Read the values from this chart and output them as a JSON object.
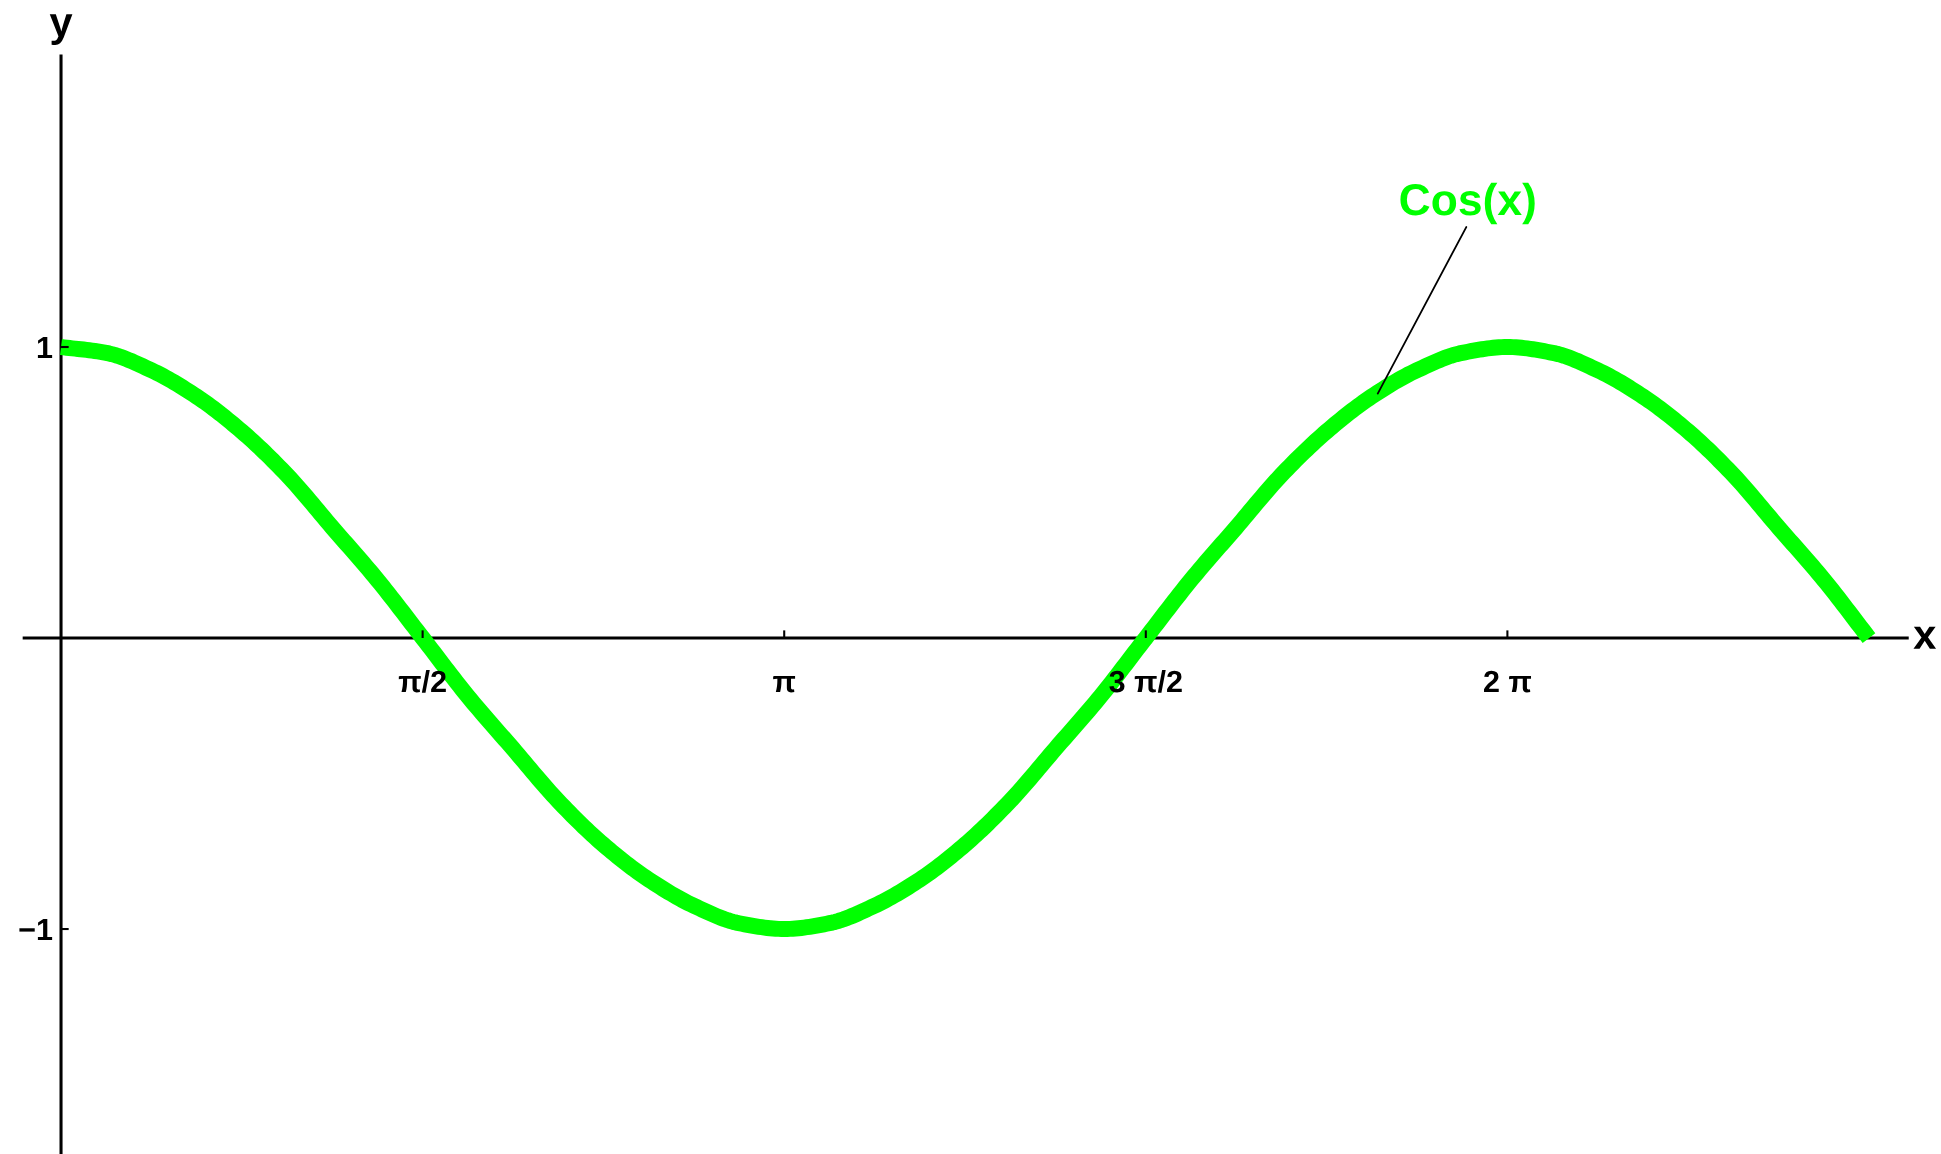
{
  "chart_data": {
    "type": "line",
    "xlabel": "x",
    "ylabel": "y",
    "x": [
      0,
      0.196,
      0.393,
      0.589,
      0.785,
      0.982,
      1.178,
      1.374,
      1.571,
      1.767,
      1.963,
      2.16,
      2.356,
      2.553,
      2.749,
      2.945,
      3.142,
      3.338,
      3.534,
      3.731,
      3.927,
      4.123,
      4.32,
      4.516,
      4.712,
      4.909,
      5.105,
      5.301,
      5.498,
      5.694,
      5.89,
      6.087,
      6.283,
      6.48,
      6.676,
      6.872,
      7.069,
      7.265,
      7.461,
      7.658,
      7.854
    ],
    "series": [
      {
        "color": "#00ff00",
        "values": [
          1,
          0.98,
          0.92,
          0.83,
          0.71,
          0.56,
          0.38,
          0.2,
          0,
          -0.2,
          -0.38,
          -0.56,
          -0.71,
          -0.83,
          -0.92,
          -0.98,
          -1,
          -0.98,
          -0.92,
          -0.83,
          -0.71,
          -0.56,
          -0.38,
          -0.2,
          0,
          0.2,
          0.38,
          0.56,
          0.71,
          0.83,
          0.92,
          0.98,
          1,
          0.98,
          0.92,
          0.83,
          0.71,
          0.56,
          0.38,
          0.2,
          0
        ]
      }
    ],
    "xlim": [
      -0.16,
      8.02
    ],
    "ylim": [
      -1.77,
      2.0
    ],
    "xticks": [
      {
        "value": 1.5708,
        "label": "π/2"
      },
      {
        "value": 3.1416,
        "label": "π"
      },
      {
        "value": 4.7124,
        "label": "3 π/2"
      },
      {
        "value": 6.2832,
        "label": "2 π"
      }
    ],
    "yticks": [
      {
        "value": -1,
        "label": "−1"
      },
      1
    ],
    "annotations": [
      {
        "text": "Cos(x)",
        "x": 5.72,
        "y": 0.84
      }
    ]
  }
}
